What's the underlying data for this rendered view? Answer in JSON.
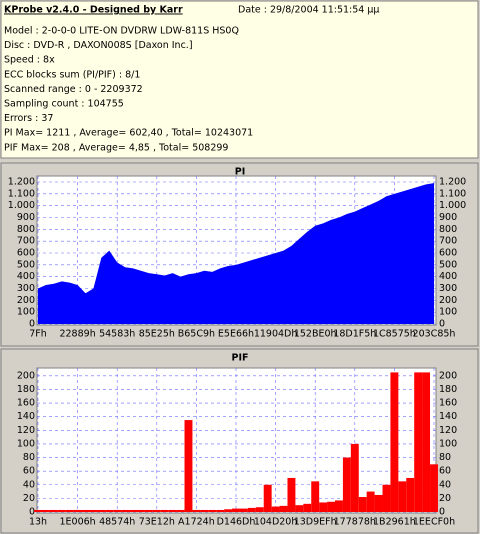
{
  "header": {
    "title": "KProbe v2.4.0 - Designed by Karr",
    "date": "Date : 29/8/2004 11:51:54 μμ",
    "lines": [
      "Model : 2-0-0-0 LITE-ON DVDRW LDW-811S   HS0Q",
      "Disc : DVD-R , DAXON008S [Daxon Inc.]",
      "Speed : 8x",
      "ECC blocks sum (PI/PIF) : 8/1",
      "Scanned range : 0 - 2209372",
      "Sampling count : 104755",
      "Errors : 37",
      "PI Max= 1211 , Average= 602,40 , Total= 10243071",
      "PIF Max= 208 , Average= 4,85 , Total= 508299"
    ]
  },
  "chart_data": [
    {
      "type": "area",
      "title": "PI",
      "color": "#0000ff",
      "grid": true,
      "categories": [
        "7Fh",
        null,
        null,
        null,
        null,
        "22889h",
        null,
        null,
        null,
        null,
        "54583h",
        null,
        null,
        null,
        null,
        "85E25h",
        null,
        null,
        null,
        null,
        "B65C9h",
        null,
        null,
        null,
        null,
        "E5E66h",
        null,
        null,
        null,
        null,
        "11904Dh",
        null,
        null,
        null,
        null,
        "152BE0h",
        null,
        null,
        null,
        null,
        "18D1F5h",
        null,
        null,
        null,
        null,
        "1C8575h",
        null,
        null,
        null,
        null,
        "203C85h"
      ],
      "values": [
        300,
        330,
        340,
        360,
        350,
        330,
        260,
        300,
        560,
        620,
        520,
        480,
        470,
        450,
        430,
        420,
        410,
        430,
        400,
        420,
        430,
        450,
        440,
        470,
        490,
        500,
        520,
        540,
        560,
        580,
        600,
        620,
        660,
        720,
        780,
        830,
        850,
        880,
        900,
        930,
        950,
        980,
        1010,
        1040,
        1080,
        1100,
        1120,
        1140,
        1160,
        1180,
        1190
      ],
      "ylim": [
        0,
        1200
      ],
      "yticks": [
        0,
        100,
        200,
        300,
        400,
        500,
        600,
        700,
        800,
        900,
        {
          "value": 1000,
          "label": "1.000"
        },
        {
          "value": 1100,
          "label": "1.100"
        },
        {
          "value": 1200,
          "label": "1.200"
        }
      ]
    },
    {
      "type": "bar",
      "title": "PIF",
      "color": "#ff0000",
      "grid": true,
      "categories": [
        "13h",
        null,
        null,
        null,
        null,
        "1E006h",
        null,
        null,
        null,
        null,
        "48574h",
        null,
        null,
        null,
        null,
        "73E12h",
        null,
        null,
        null,
        null,
        "A1724h",
        null,
        null,
        null,
        null,
        "D146Dh",
        null,
        null,
        null,
        null,
        "104D20h",
        null,
        null,
        null,
        null,
        "13D9EFh",
        null,
        null,
        null,
        null,
        "177878h",
        null,
        null,
        null,
        null,
        "1B2961h",
        null,
        null,
        null,
        null,
        "1EECF0h"
      ],
      "values": [
        3,
        3,
        3,
        3,
        3,
        3,
        3,
        3,
        3,
        3,
        3,
        3,
        3,
        3,
        3,
        3,
        3,
        3,
        3,
        135,
        3,
        3,
        3,
        3,
        4,
        5,
        5,
        6,
        7,
        40,
        8,
        9,
        50,
        10,
        12,
        45,
        14,
        15,
        17,
        80,
        100,
        22,
        30,
        25,
        40,
        205,
        45,
        50,
        205,
        205,
        70
      ],
      "ylim": [
        0,
        210
      ],
      "yticks": [
        0,
        20,
        40,
        60,
        80,
        100,
        120,
        140,
        160,
        180,
        200
      ]
    }
  ]
}
